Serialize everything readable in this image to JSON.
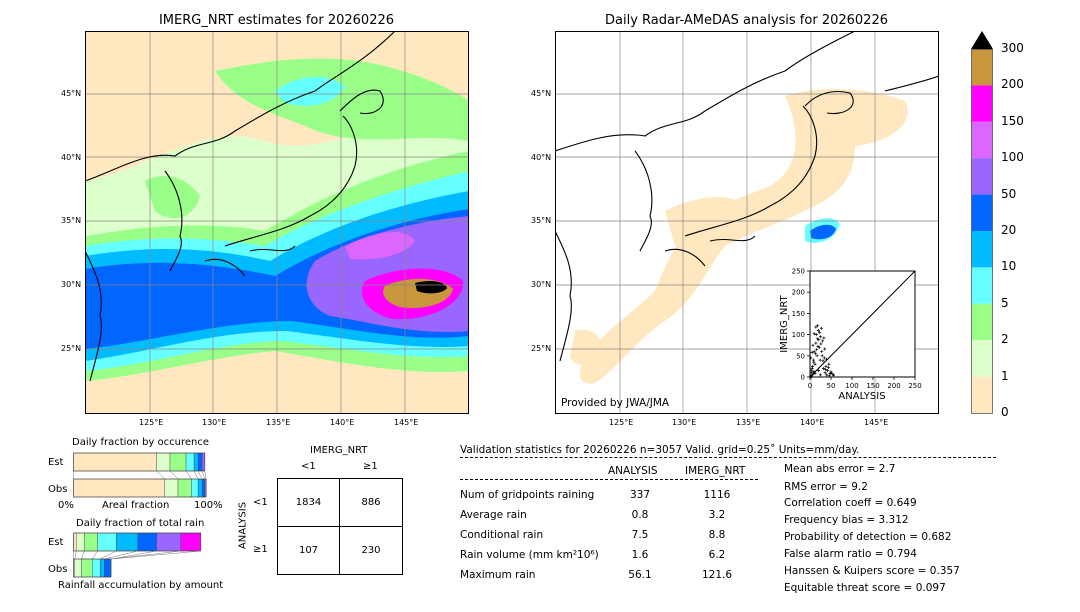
{
  "left_map": {
    "title": "IMERG_NRT estimates for 20260226",
    "lat_ticks": [
      "45°N",
      "40°N",
      "35°N",
      "30°N",
      "25°N"
    ],
    "lon_ticks": [
      "125°E",
      "130°E",
      "135°E",
      "140°E",
      "145°E"
    ]
  },
  "right_map": {
    "title": "Daily Radar-AMeDAS analysis for 20260226",
    "lat_ticks": [
      "45°N",
      "40°N",
      "35°N",
      "30°N",
      "25°N"
    ],
    "lon_ticks": [
      "125°E",
      "130°E",
      "135°E",
      "140°E",
      "145°E"
    ],
    "credit": "Provided by JWA/JMA"
  },
  "colorbar": {
    "labels": [
      "300",
      "200",
      "150",
      "100",
      "50",
      "20",
      "10",
      "5",
      "2",
      "1",
      "0"
    ],
    "colors": [
      "#000000",
      "#c8963c",
      "#ff00ff",
      "#dd66ff",
      "#9966ff",
      "#0066ff",
      "#00bbff",
      "#66ffff",
      "#99ff88",
      "#ddffcc",
      "#ffe8c0"
    ]
  },
  "chart_data": [
    {
      "type": "scatter",
      "xlabel": "ANALYSIS",
      "ylabel": "IMERG_NRT",
      "xlim": [
        0,
        250
      ],
      "ylim": [
        0,
        250
      ],
      "x_ticks": [
        "0",
        "50",
        "100",
        "150",
        "200",
        "250"
      ],
      "y_ticks": [
        "0",
        "50",
        "100",
        "150",
        "200",
        "250"
      ],
      "points": [
        [
          2,
          2
        ],
        [
          3,
          10
        ],
        [
          5,
          20
        ],
        [
          6,
          5
        ],
        [
          8,
          40
        ],
        [
          10,
          60
        ],
        [
          12,
          30
        ],
        [
          14,
          80
        ],
        [
          15,
          100
        ],
        [
          17,
          50
        ],
        [
          18,
          90
        ],
        [
          20,
          110
        ],
        [
          22,
          70
        ],
        [
          24,
          40
        ],
        [
          25,
          95
        ],
        [
          27,
          115
        ],
        [
          28,
          60
        ],
        [
          30,
          85
        ],
        [
          32,
          20
        ],
        [
          34,
          45
        ],
        [
          36,
          10
        ],
        [
          38,
          25
        ],
        [
          40,
          5
        ],
        [
          42,
          15
        ],
        [
          45,
          30
        ],
        [
          48,
          8
        ],
        [
          50,
          12
        ],
        [
          55,
          6
        ],
        [
          1,
          1
        ],
        [
          4,
          0
        ],
        [
          3,
          15
        ],
        [
          6,
          25
        ],
        [
          9,
          35
        ],
        [
          11,
          12
        ],
        [
          13,
          55
        ],
        [
          16,
          65
        ],
        [
          19,
          72
        ],
        [
          21,
          88
        ],
        [
          23,
          105
        ],
        [
          26,
          78
        ],
        [
          29,
          50
        ],
        [
          31,
          38
        ],
        [
          33,
          92
        ],
        [
          35,
          66
        ],
        [
          37,
          18
        ],
        [
          39,
          42
        ],
        [
          44,
          22
        ],
        [
          46,
          3
        ],
        [
          52,
          9
        ],
        [
          56,
          4
        ],
        [
          7,
          75
        ],
        [
          10,
          102
        ],
        [
          14,
          118
        ],
        [
          18,
          121
        ],
        [
          2,
          45
        ],
        [
          5,
          58
        ],
        [
          8,
          12
        ],
        [
          12,
          8
        ],
        [
          20,
          15
        ],
        [
          25,
          5
        ]
      ]
    },
    {
      "type": "bar",
      "title": "Daily fraction by occurence",
      "categories": [
        "Est",
        "Obs"
      ],
      "x_ticks": [
        "0%",
        "Areal fraction",
        "100%"
      ],
      "series": [
        {
          "values": [
            0.62,
            0.68
          ],
          "color": "#ffe8c0"
        },
        {
          "values": [
            0.1,
            0.1
          ],
          "color": "#ddffcc"
        },
        {
          "values": [
            0.12,
            0.1
          ],
          "color": "#99ff88"
        },
        {
          "values": [
            0.06,
            0.05
          ],
          "color": "#66ffff"
        },
        {
          "values": [
            0.03,
            0.03
          ],
          "color": "#00bbff"
        },
        {
          "values": [
            0.03,
            0.02
          ],
          "color": "#0066ff"
        },
        {
          "values": [
            0.02,
            0.01
          ],
          "color": "#9966ff"
        }
      ]
    },
    {
      "type": "bar",
      "title": "Daily fraction of total rain",
      "xlabel": "Rainfall accumulation by amount",
      "categories": [
        "Est",
        "Obs"
      ],
      "series": [
        {
          "values": [
            0.02,
            0.01
          ],
          "color": "#ffe8c0"
        },
        {
          "values": [
            0.06,
            0.05
          ],
          "color": "#ddffcc"
        },
        {
          "values": [
            0.1,
            0.08
          ],
          "color": "#99ff88"
        },
        {
          "values": [
            0.14,
            0.06
          ],
          "color": "#66ffff"
        },
        {
          "values": [
            0.16,
            0.03
          ],
          "color": "#00bbff"
        },
        {
          "values": [
            0.14,
            0.05
          ],
          "color": "#0066ff"
        },
        {
          "values": [
            0.18,
            0.0
          ],
          "color": "#9966ff"
        },
        {
          "values": [
            0.15,
            0.0
          ],
          "color": "#ff00ff"
        }
      ]
    }
  ],
  "contingency": {
    "title": "IMERG_NRT",
    "col_labels": [
      "<1",
      "≥1"
    ],
    "row_label": "ANALYSIS",
    "row_labels": [
      "<1",
      "≥1"
    ],
    "cells": [
      [
        "1834",
        "886"
      ],
      [
        "107",
        "230"
      ]
    ]
  },
  "validation": {
    "header": "Validation statistics for 20260226  n=3057 Valid. grid=0.25˚ Units=mm/day.",
    "col_analysis": "ANALYSIS",
    "col_imerg": "IMERG_NRT",
    "rows": [
      {
        "label": "Num of gridpoints raining",
        "analysis": "337",
        "imerg": "1116"
      },
      {
        "label": "Average rain",
        "analysis": "0.8",
        "imerg": "3.2"
      },
      {
        "label": "Conditional rain",
        "analysis": "7.5",
        "imerg": "8.8"
      },
      {
        "label": "Rain volume (mm km²10⁶)",
        "analysis": "1.6",
        "imerg": "6.2"
      },
      {
        "label": "Maximum rain",
        "analysis": "56.1",
        "imerg": "121.6"
      }
    ],
    "scores": [
      "Mean abs error =    2.7",
      "RMS error =    9.2",
      "Correlation coeff =  0.649",
      "Frequency bias =  3.312",
      "Probability of detection =  0.682",
      "False alarm ratio =  0.794",
      "Hanssen & Kuipers score =  0.357",
      "Equitable threat score =  0.097"
    ]
  }
}
